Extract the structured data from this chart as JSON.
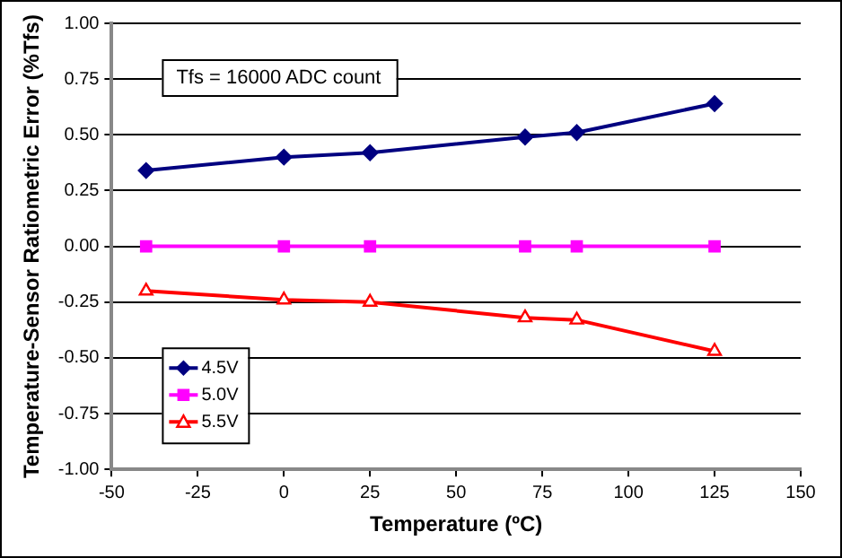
{
  "chart_data": {
    "type": "line",
    "xlabel": "Temperature (ºC)",
    "ylabel": "Temperature-Sensor Ratiometric Error (%Tfs)",
    "x": [
      -40,
      0,
      25,
      70,
      85,
      125
    ],
    "series": [
      {
        "name": "4.5V",
        "color": "#000080",
        "marker": "diamond",
        "values": [
          0.34,
          0.4,
          0.42,
          0.49,
          0.51,
          0.64
        ]
      },
      {
        "name": "5.0V",
        "color": "#ff00ff",
        "marker": "square",
        "values": [
          0,
          0,
          0,
          0,
          0,
          0
        ]
      },
      {
        "name": "5.5V",
        "color": "#ff0000",
        "marker": "triangle",
        "values": [
          -0.2,
          -0.24,
          -0.25,
          -0.32,
          -0.33,
          -0.47
        ]
      }
    ],
    "xlim": [
      -50,
      150
    ],
    "xticks": [
      -50,
      -25,
      0,
      25,
      50,
      75,
      100,
      125,
      150
    ],
    "ylim": [
      -1,
      1
    ],
    "yticks": [
      {
        "value": -1,
        "label": "-1.00"
      },
      {
        "value": -0.75,
        "label": "-0.75"
      },
      {
        "value": -0.5,
        "label": "-0.50"
      },
      {
        "value": -0.25,
        "label": "-0.25"
      },
      {
        "value": 0,
        "label": "0.00"
      },
      {
        "value": 0.25,
        "label": "0.25"
      },
      {
        "value": 0.5,
        "label": "0.50"
      },
      {
        "value": 0.75,
        "label": "0.75"
      },
      {
        "value": 1,
        "label": "1.00"
      }
    ],
    "grid": "y",
    "legend": "bottom left",
    "line_style": "solid",
    "annotations": [
      "Tfs = 16000 ADC count"
    ]
  }
}
